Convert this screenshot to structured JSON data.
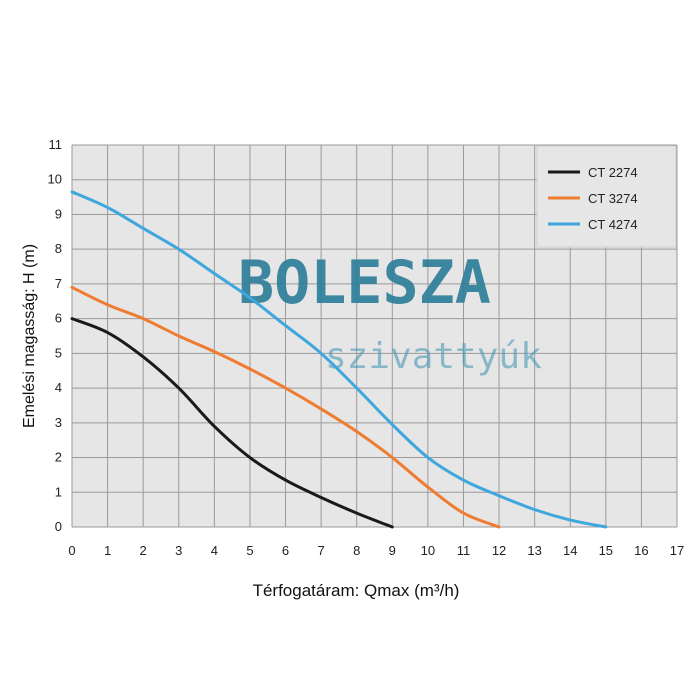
{
  "chart_data": {
    "type": "line",
    "xlabel": "Térfogatáram: Qmax (m³/h)",
    "ylabel": "Emelési magasság: H (m)",
    "xlim": [
      0,
      17
    ],
    "ylim": [
      0,
      11
    ],
    "x_ticks": [
      0,
      1,
      2,
      3,
      4,
      5,
      6,
      7,
      8,
      9,
      10,
      11,
      12,
      13,
      14,
      15,
      16,
      17
    ],
    "y_ticks": [
      0,
      1,
      2,
      3,
      4,
      5,
      6,
      7,
      8,
      9,
      10,
      11
    ],
    "grid": true,
    "legend_position": "top-right",
    "series": [
      {
        "name": "CT 2274",
        "color": "#1a1a1a",
        "x": [
          0,
          1,
          2,
          3,
          4,
          5,
          6,
          7,
          8,
          9
        ],
        "y": [
          6.0,
          5.6,
          4.9,
          4.0,
          2.9,
          2.0,
          1.35,
          0.85,
          0.4,
          0.0
        ]
      },
      {
        "name": "CT 3274",
        "color": "#ee7d31",
        "x": [
          0,
          1,
          2,
          3,
          4,
          5,
          6,
          7,
          8,
          9,
          10,
          11,
          12
        ],
        "y": [
          6.9,
          6.4,
          6.0,
          5.5,
          5.05,
          4.55,
          4.0,
          3.4,
          2.75,
          2.0,
          1.15,
          0.4,
          0.0
        ]
      },
      {
        "name": "CT 4274",
        "color": "#3ea7dd",
        "x": [
          0,
          1,
          2,
          3,
          4,
          5,
          6,
          7,
          8,
          9,
          10,
          11,
          12,
          13,
          14,
          15
        ],
        "y": [
          9.65,
          9.2,
          8.6,
          8.0,
          7.3,
          6.6,
          5.8,
          5.0,
          4.0,
          2.95,
          2.0,
          1.35,
          0.9,
          0.5,
          0.2,
          0.0
        ]
      }
    ]
  },
  "watermark": {
    "title": "BOLESZA",
    "subtitle": "szivattyúk"
  }
}
